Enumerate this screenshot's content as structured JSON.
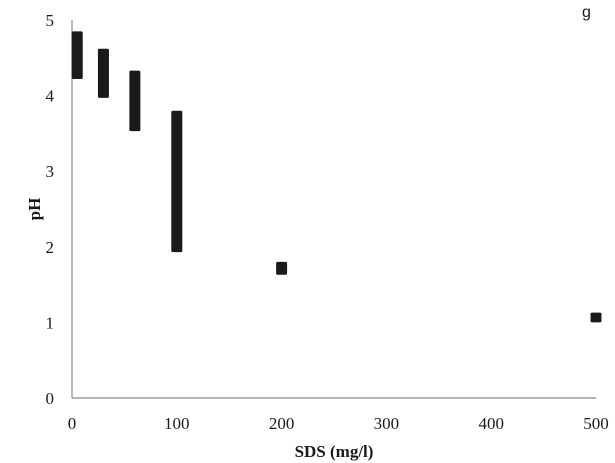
{
  "top_fragment": "g",
  "chart_data": {
    "type": "scatter",
    "title": "",
    "xlabel": "SDS (mg/l)",
    "ylabel": "pH",
    "xlim": [
      0,
      500
    ],
    "ylim": [
      0,
      5
    ],
    "xticks": [
      0,
      100,
      200,
      300,
      400,
      500
    ],
    "yticks": [
      0,
      1,
      2,
      3,
      4,
      5
    ],
    "grid": false,
    "legend": "none",
    "marker_color": "#1a1a1a",
    "series": [
      {
        "name": "",
        "points": [
          {
            "x": 5,
            "y_min": 4.22,
            "y_max": 4.85
          },
          {
            "x": 30,
            "y_min": 3.97,
            "y_max": 4.62
          },
          {
            "x": 60,
            "y_min": 3.53,
            "y_max": 4.33
          },
          {
            "x": 100,
            "y_min": 1.93,
            "y_max": 3.8
          },
          {
            "x": 200,
            "y_min": 1.63,
            "y_max": 1.8
          },
          {
            "x": 500,
            "y_min": 1.0,
            "y_max": 1.13
          }
        ]
      }
    ]
  }
}
